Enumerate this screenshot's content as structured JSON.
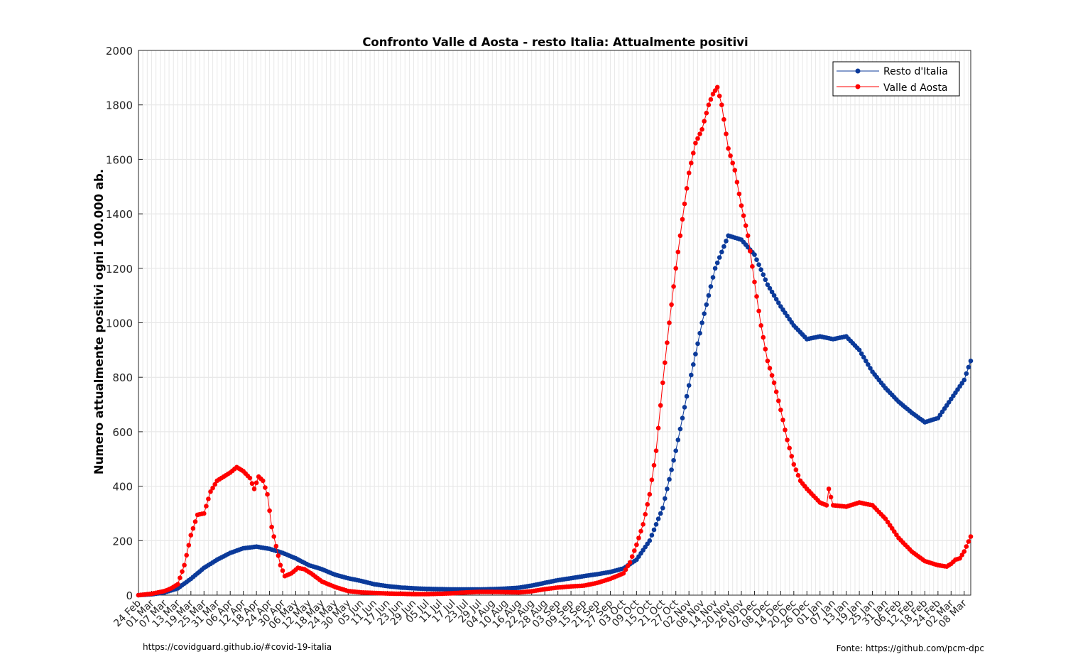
{
  "chart_data": {
    "type": "line",
    "title": "Confronto Valle d Aosta - resto Italia: Attualmente positivi",
    "xlabel": "",
    "ylabel": "Numero attualmente positivi ogni 100.000 ab.",
    "ylim": [
      0,
      2000
    ],
    "yticks": [
      0,
      200,
      400,
      600,
      800,
      1000,
      1200,
      1400,
      1600,
      1800,
      2000
    ],
    "x_start": "2020-02-24",
    "x_end": "2021-03-11",
    "x_tick_labels": [
      "24 Feb",
      "01 Mar",
      "07 Mar",
      "13 Mar",
      "19 Mar",
      "25 Mar",
      "31 Mar",
      "06 Apr",
      "12 Apr",
      "18 Apr",
      "24 Apr",
      "30 Apr",
      "06 May",
      "12 May",
      "18 May",
      "24 May",
      "30 May",
      "05 Jun",
      "11 Jun",
      "17 Jun",
      "23 Jun",
      "29 Jun",
      "05 Jul",
      "11 Jul",
      "17 Jul",
      "23 Jul",
      "29 Jul",
      "04 Aug",
      "10 Aug",
      "16 Aug",
      "22 Aug",
      "28 Aug",
      "03 Sep",
      "09 Sep",
      "15 Sep",
      "21 Sep",
      "27 Sep",
      "03 Oct",
      "09 Oct",
      "15 Oct",
      "21 Oct",
      "27 Oct",
      "02 Nov",
      "08 Nov",
      "14 Nov",
      "20 Nov",
      "26 Nov",
      "02 Dec",
      "08 Dec",
      "14 Dec",
      "20 Dec",
      "26 Dec",
      "01 Jan",
      "07 Jan",
      "13 Jan",
      "19 Jan",
      "25 Jan",
      "31 Jan",
      "06 Feb",
      "12 Feb",
      "18 Feb",
      "24 Feb",
      "02 Mar",
      "08 Mar"
    ],
    "grid": true,
    "legend_position": "top-right",
    "series": [
      {
        "name": "Resto d'Italia",
        "color": "#0b3a9a",
        "marker": "dot",
        "points": [
          [
            "2020-02-24",
            0
          ],
          [
            "2020-03-01",
            3
          ],
          [
            "2020-03-07",
            10
          ],
          [
            "2020-03-13",
            25
          ],
          [
            "2020-03-19",
            60
          ],
          [
            "2020-03-25",
            100
          ],
          [
            "2020-03-31",
            130
          ],
          [
            "2020-04-06",
            155
          ],
          [
            "2020-04-12",
            172
          ],
          [
            "2020-04-18",
            178
          ],
          [
            "2020-04-24",
            170
          ],
          [
            "2020-04-30",
            155
          ],
          [
            "2020-05-06",
            135
          ],
          [
            "2020-05-12",
            110
          ],
          [
            "2020-05-18",
            95
          ],
          [
            "2020-05-24",
            75
          ],
          [
            "2020-05-30",
            62
          ],
          [
            "2020-06-05",
            52
          ],
          [
            "2020-06-11",
            40
          ],
          [
            "2020-06-17",
            33
          ],
          [
            "2020-06-23",
            28
          ],
          [
            "2020-06-29",
            25
          ],
          [
            "2020-07-05",
            23
          ],
          [
            "2020-07-11",
            22
          ],
          [
            "2020-07-17",
            21
          ],
          [
            "2020-07-23",
            21
          ],
          [
            "2020-07-29",
            21
          ],
          [
            "2020-08-04",
            22
          ],
          [
            "2020-08-10",
            24
          ],
          [
            "2020-08-16",
            27
          ],
          [
            "2020-08-22",
            35
          ],
          [
            "2020-08-28",
            45
          ],
          [
            "2020-09-03",
            55
          ],
          [
            "2020-09-09",
            62
          ],
          [
            "2020-09-15",
            70
          ],
          [
            "2020-09-21",
            77
          ],
          [
            "2020-09-27",
            85
          ],
          [
            "2020-10-03",
            98
          ],
          [
            "2020-10-09",
            130
          ],
          [
            "2020-10-15",
            200
          ],
          [
            "2020-10-21",
            320
          ],
          [
            "2020-10-27",
            530
          ],
          [
            "2020-11-02",
            770
          ],
          [
            "2020-11-08",
            1000
          ],
          [
            "2020-11-14",
            1200
          ],
          [
            "2020-11-20",
            1320
          ],
          [
            "2020-11-26",
            1305
          ],
          [
            "2020-12-02",
            1250
          ],
          [
            "2020-12-08",
            1140
          ],
          [
            "2020-12-14",
            1060
          ],
          [
            "2020-12-20",
            990
          ],
          [
            "2020-12-26",
            940
          ],
          [
            "2021-01-01",
            950
          ],
          [
            "2021-01-07",
            940
          ],
          [
            "2021-01-13",
            950
          ],
          [
            "2021-01-19",
            900
          ],
          [
            "2021-01-25",
            820
          ],
          [
            "2021-01-31",
            760
          ],
          [
            "2021-02-06",
            710
          ],
          [
            "2021-02-12",
            670
          ],
          [
            "2021-02-18",
            635
          ],
          [
            "2021-02-24",
            650
          ],
          [
            "2021-03-02",
            720
          ],
          [
            "2021-03-08",
            790
          ],
          [
            "2021-03-11",
            860
          ]
        ]
      },
      {
        "name": "Valle d Aosta",
        "color": "#ff0000",
        "marker": "dot",
        "points": [
          [
            "2020-02-24",
            0
          ],
          [
            "2020-03-01",
            5
          ],
          [
            "2020-03-07",
            15
          ],
          [
            "2020-03-10",
            25
          ],
          [
            "2020-03-13",
            40
          ],
          [
            "2020-03-16",
            110
          ],
          [
            "2020-03-19",
            220
          ],
          [
            "2020-03-22",
            295
          ],
          [
            "2020-03-25",
            300
          ],
          [
            "2020-03-28",
            380
          ],
          [
            "2020-03-31",
            420
          ],
          [
            "2020-04-03",
            435
          ],
          [
            "2020-04-06",
            450
          ],
          [
            "2020-04-09",
            470
          ],
          [
            "2020-04-12",
            455
          ],
          [
            "2020-04-15",
            430
          ],
          [
            "2020-04-17",
            390
          ],
          [
            "2020-04-19",
            435
          ],
          [
            "2020-04-21",
            420
          ],
          [
            "2020-04-23",
            370
          ],
          [
            "2020-04-25",
            250
          ],
          [
            "2020-04-27",
            180
          ],
          [
            "2020-04-29",
            110
          ],
          [
            "2020-05-01",
            70
          ],
          [
            "2020-05-04",
            80
          ],
          [
            "2020-05-07",
            100
          ],
          [
            "2020-05-10",
            95
          ],
          [
            "2020-05-13",
            80
          ],
          [
            "2020-05-18",
            50
          ],
          [
            "2020-05-24",
            30
          ],
          [
            "2020-05-30",
            15
          ],
          [
            "2020-06-05",
            10
          ],
          [
            "2020-06-11",
            8
          ],
          [
            "2020-06-17",
            6
          ],
          [
            "2020-06-23",
            5
          ],
          [
            "2020-06-29",
            4
          ],
          [
            "2020-07-05",
            4
          ],
          [
            "2020-07-11",
            5
          ],
          [
            "2020-07-17",
            7
          ],
          [
            "2020-07-23",
            10
          ],
          [
            "2020-07-29",
            12
          ],
          [
            "2020-08-04",
            12
          ],
          [
            "2020-08-10",
            11
          ],
          [
            "2020-08-16",
            10
          ],
          [
            "2020-08-22",
            14
          ],
          [
            "2020-08-28",
            22
          ],
          [
            "2020-09-03",
            28
          ],
          [
            "2020-09-09",
            32
          ],
          [
            "2020-09-15",
            35
          ],
          [
            "2020-09-21",
            45
          ],
          [
            "2020-09-27",
            60
          ],
          [
            "2020-10-03",
            80
          ],
          [
            "2020-10-06",
            120
          ],
          [
            "2020-10-09",
            185
          ],
          [
            "2020-10-12",
            260
          ],
          [
            "2020-10-15",
            370
          ],
          [
            "2020-10-18",
            530
          ],
          [
            "2020-10-21",
            780
          ],
          [
            "2020-10-24",
            1000
          ],
          [
            "2020-10-27",
            1200
          ],
          [
            "2020-10-30",
            1380
          ],
          [
            "2020-11-02",
            1550
          ],
          [
            "2020-11-05",
            1660
          ],
          [
            "2020-11-08",
            1710
          ],
          [
            "2020-11-11",
            1800
          ],
          [
            "2020-11-13",
            1840
          ],
          [
            "2020-11-15",
            1865
          ],
          [
            "2020-11-17",
            1800
          ],
          [
            "2020-11-20",
            1640
          ],
          [
            "2020-11-23",
            1560
          ],
          [
            "2020-11-26",
            1430
          ],
          [
            "2020-11-29",
            1320
          ],
          [
            "2020-12-02",
            1150
          ],
          [
            "2020-12-05",
            990
          ],
          [
            "2020-12-08",
            860
          ],
          [
            "2020-12-11",
            780
          ],
          [
            "2020-12-14",
            680
          ],
          [
            "2020-12-17",
            570
          ],
          [
            "2020-12-20",
            480
          ],
          [
            "2020-12-23",
            420
          ],
          [
            "2020-12-26",
            390
          ],
          [
            "2020-12-29",
            365
          ],
          [
            "2021-01-01",
            340
          ],
          [
            "2021-01-04",
            330
          ],
          [
            "2021-01-05",
            390
          ],
          [
            "2021-01-07",
            330
          ],
          [
            "2021-01-13",
            325
          ],
          [
            "2021-01-19",
            340
          ],
          [
            "2021-01-25",
            330
          ],
          [
            "2021-01-31",
            280
          ],
          [
            "2021-02-06",
            210
          ],
          [
            "2021-02-12",
            160
          ],
          [
            "2021-02-18",
            125
          ],
          [
            "2021-02-24",
            110
          ],
          [
            "2021-02-28",
            105
          ],
          [
            "2021-03-02",
            115
          ],
          [
            "2021-03-04",
            130
          ],
          [
            "2021-03-06",
            135
          ],
          [
            "2021-03-08",
            160
          ],
          [
            "2021-03-11",
            215
          ]
        ]
      }
    ]
  },
  "footer": {
    "left": "https://covidguard.github.io/#covid-19-italia",
    "right": "Fonte: https://github.com/pcm-dpc"
  }
}
